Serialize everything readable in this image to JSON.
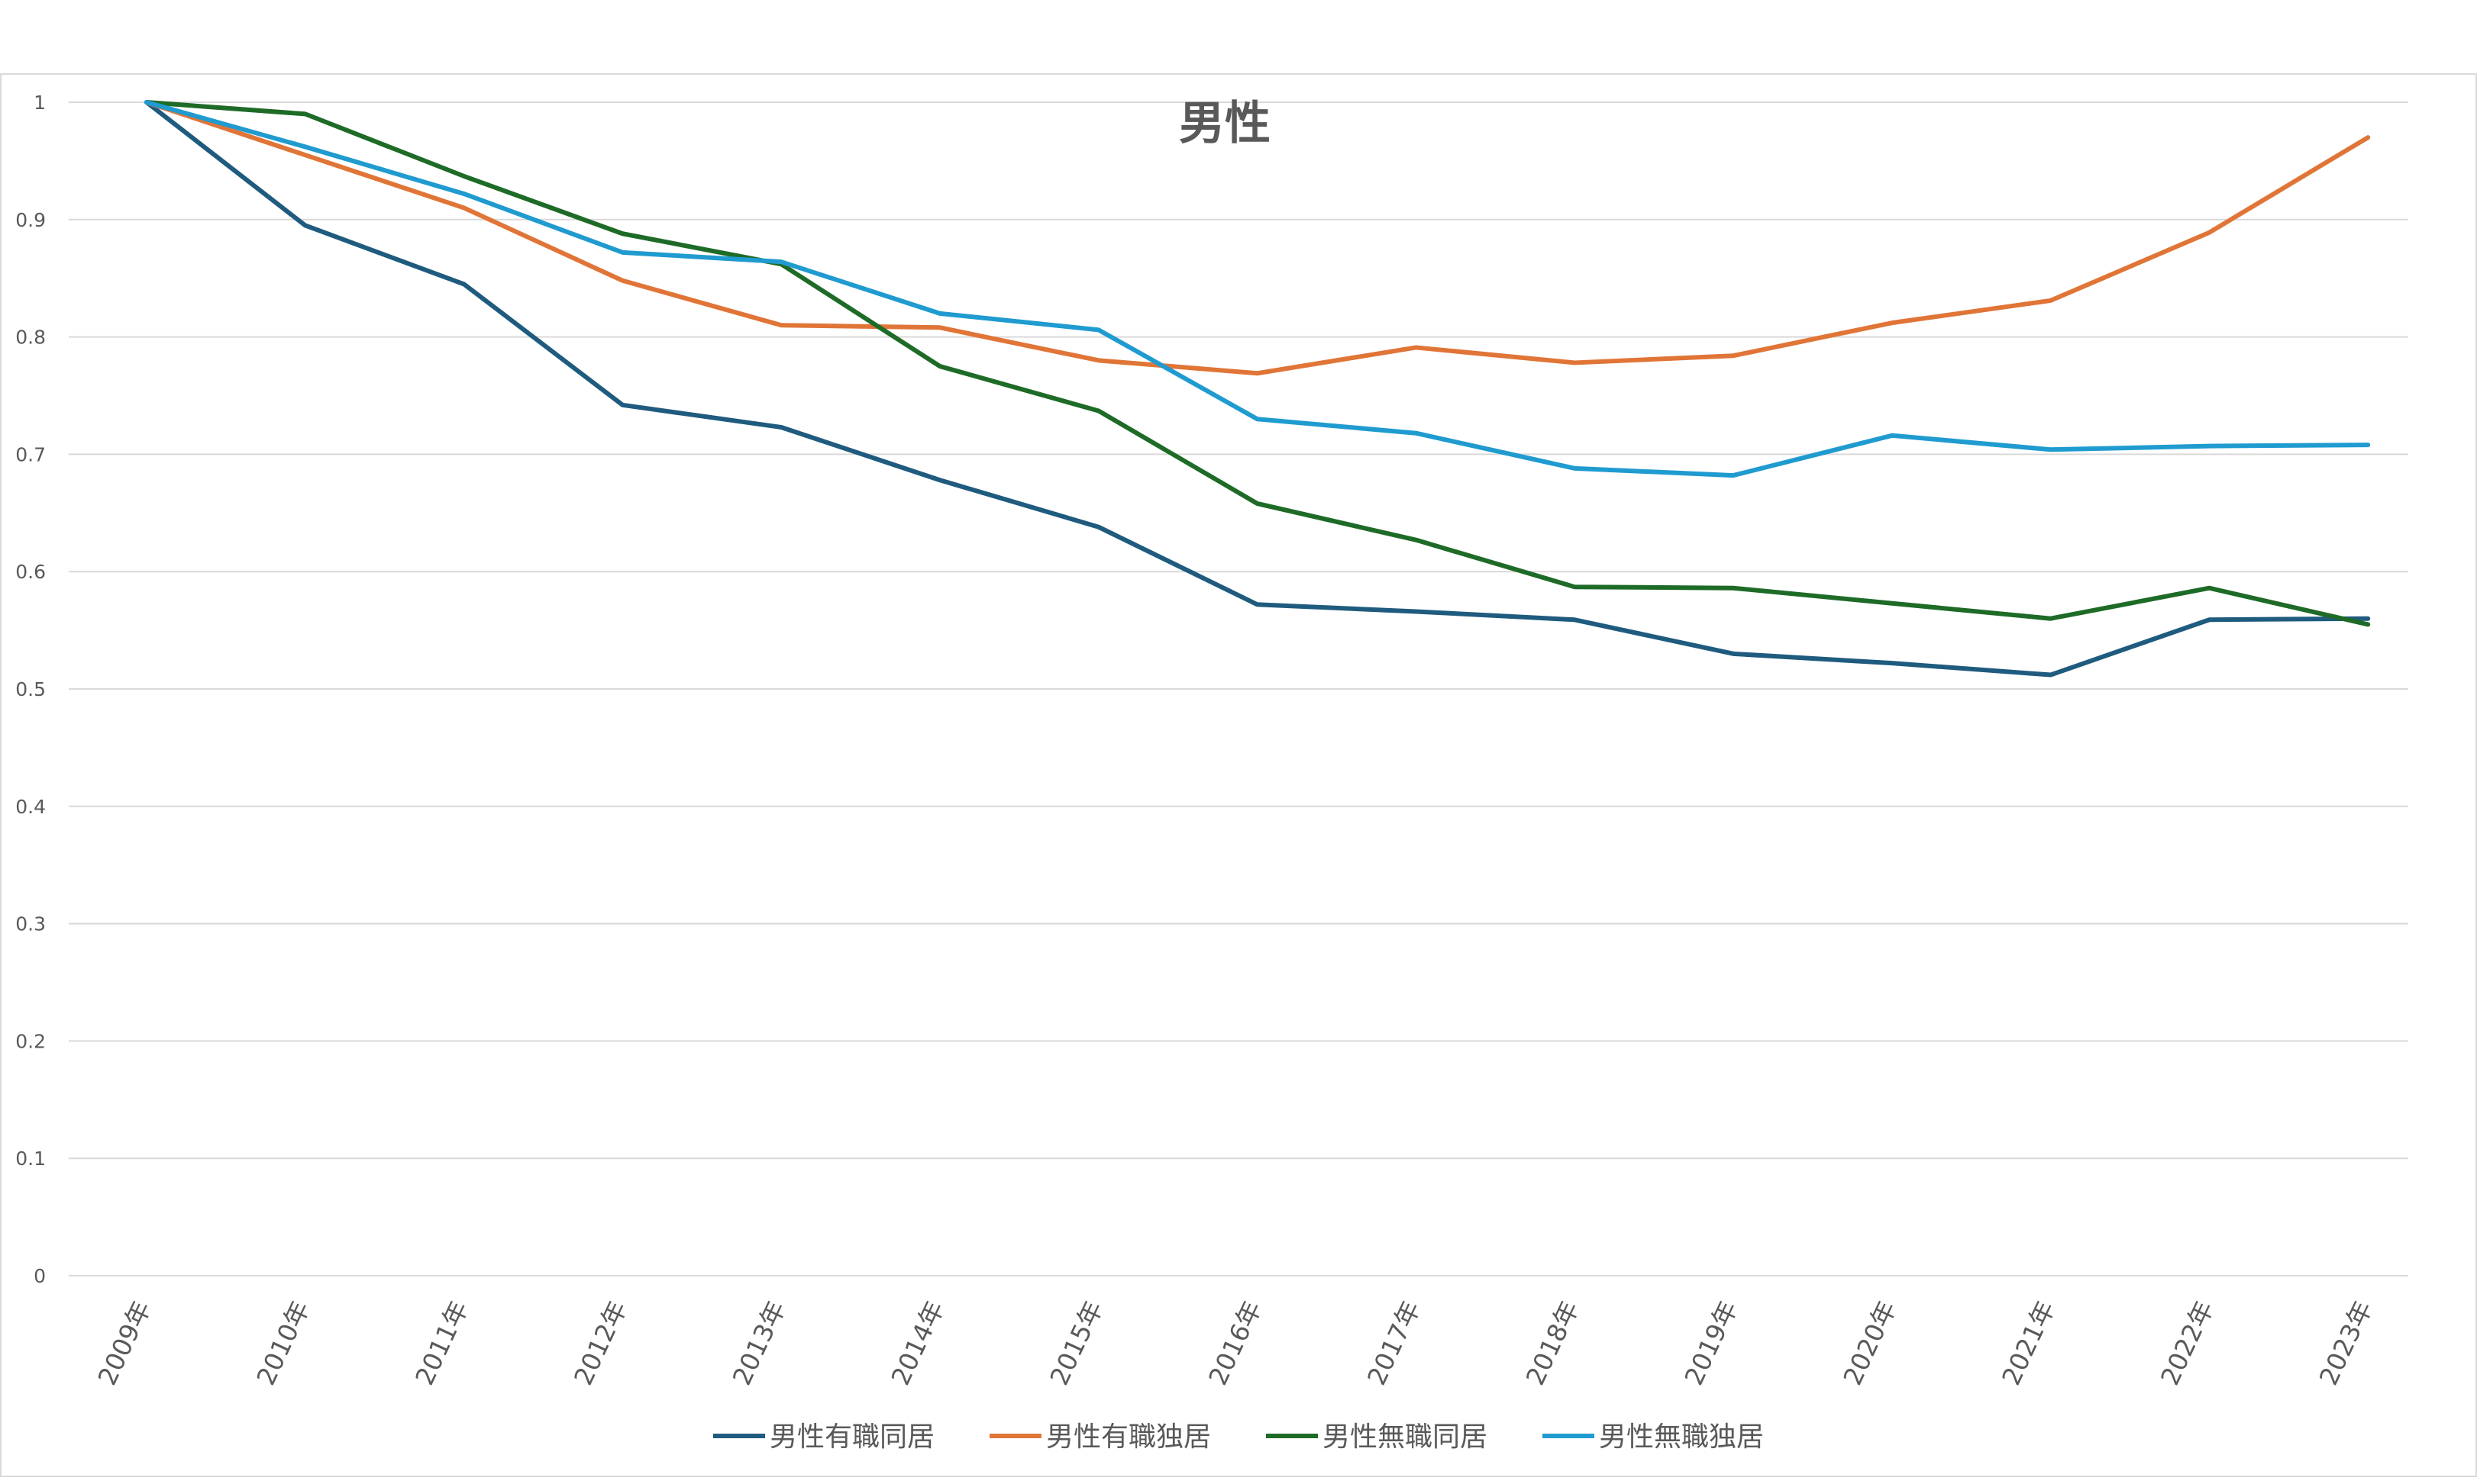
{
  "chart_data": {
    "type": "line",
    "title": "男性",
    "xlabel": "",
    "ylabel": "",
    "categories": [
      "2009年",
      "2010年",
      "2011年",
      "2012年",
      "2013年",
      "2014年",
      "2015年",
      "2016年",
      "2017年",
      "2018年",
      "2019年",
      "2020年",
      "2021年",
      "2022年",
      "2023年"
    ],
    "yticks": [
      "0",
      "0.1",
      "0.2",
      "0.3",
      "0.4",
      "0.5",
      "0.6",
      "0.7",
      "0.8",
      "0.9",
      "1"
    ],
    "ylim": [
      0,
      1
    ],
    "grid": true,
    "legend": "bottom",
    "series": [
      {
        "name": "男性有職同居",
        "color": "#1f5b7e",
        "values": [
          1.0,
          0.895,
          0.845,
          0.742,
          0.723,
          0.678,
          0.638,
          0.572,
          0.566,
          0.559,
          0.53,
          0.522,
          0.512,
          0.559,
          0.56
        ]
      },
      {
        "name": "男性有職独居",
        "color": "#e07537",
        "values": [
          1.0,
          0.955,
          0.91,
          0.848,
          0.81,
          0.808,
          0.78,
          0.769,
          0.791,
          0.778,
          0.784,
          0.812,
          0.831,
          0.889,
          0.97
        ]
      },
      {
        "name": "男性無職同居",
        "color": "#1e6b27",
        "values": [
          1.0,
          0.99,
          0.937,
          0.888,
          0.862,
          0.775,
          0.737,
          0.658,
          0.627,
          0.587,
          0.586,
          0.573,
          0.56,
          0.586,
          0.555
        ]
      },
      {
        "name": "男性無職独居",
        "color": "#1f9bd0",
        "values": [
          1.0,
          0.962,
          0.922,
          0.872,
          0.864,
          0.82,
          0.806,
          0.73,
          0.718,
          0.688,
          0.682,
          0.716,
          0.704,
          0.707,
          0.708
        ]
      }
    ]
  }
}
